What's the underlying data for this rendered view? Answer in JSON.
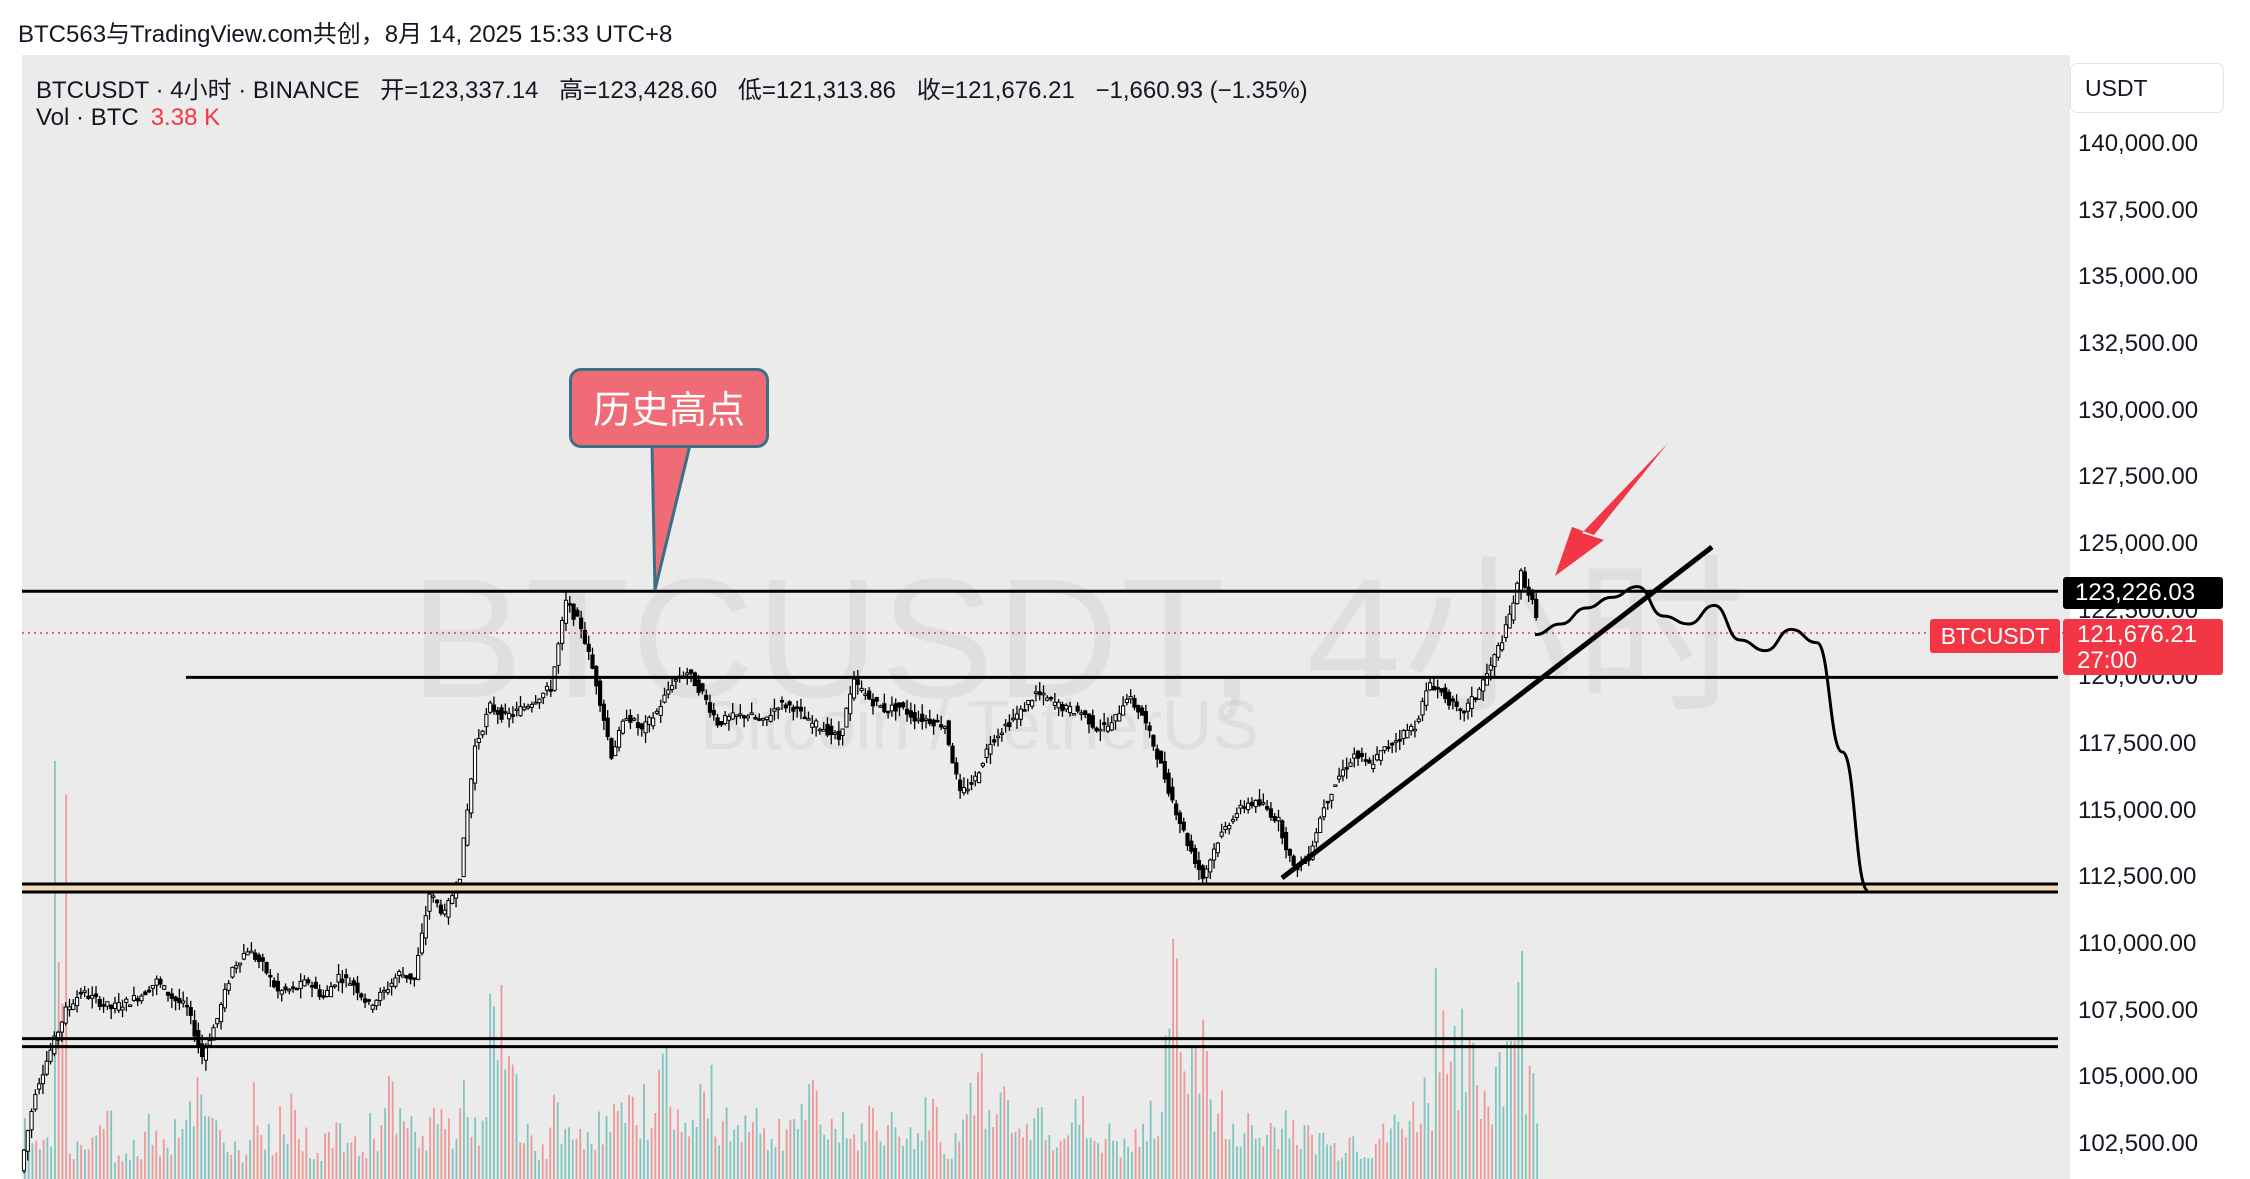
{
  "caption": "BTC563与TradingView.com共创，8月 14, 2025 15:33 UTC+8",
  "legend": {
    "symbol": "BTCUSDT · 4小时 · BINANCE",
    "open": "开=123,337.14",
    "high": "高=123,428.60",
    "low": "低=121,313.86",
    "close": "收=121,676.21",
    "change": "−1,660.93 (−1.35%)"
  },
  "volume_legend": {
    "label": "Vol · BTC",
    "value": "3.38 K"
  },
  "currency": "USDT",
  "watermark": {
    "main": "BTCUSDT, 4小时",
    "sub": "Bitcoin / TetherUS"
  },
  "callout": "历史高点",
  "price_axis": [
    "140,000.00",
    "137,500.00",
    "135,000.00",
    "132,500.00",
    "130,000.00",
    "127,500.00",
    "125,000.00",
    "122,500.00",
    "120,000.00",
    "117,500.00",
    "115,000.00",
    "112,500.00",
    "110,000.00",
    "107,500.00",
    "105,000.00",
    "102,500.00"
  ],
  "line_label": "123,226.03",
  "last_price": {
    "price": "121,676.21",
    "countdown": "27:00",
    "symbol": "BTCUSDT"
  },
  "colors": {
    "up": "#26a69a",
    "down": "#ef5350",
    "last": "#f23645",
    "callout": "#ef6b76"
  },
  "chart_data": {
    "type": "candlestick",
    "title": "BTCUSDT · 4小时 · BINANCE",
    "ylim": [
      101500,
      142000
    ],
    "price_ticks": [
      140000,
      137500,
      135000,
      132500,
      130000,
      127500,
      125000,
      122500,
      120000,
      117500,
      115000,
      112500,
      110000,
      107500,
      105000,
      102500
    ],
    "close_path": [
      101500,
      104500,
      106000,
      107500,
      108200,
      107900,
      107600,
      107800,
      108100,
      108600,
      108000,
      107600,
      105800,
      107200,
      109100,
      109800,
      109200,
      108200,
      108300,
      108600,
      108000,
      108800,
      108500,
      107700,
      108200,
      108900,
      108700,
      111900,
      111100,
      112600,
      117400,
      118900,
      118500,
      118800,
      119200,
      119600,
      122800,
      121900,
      119800,
      117100,
      118600,
      118000,
      118700,
      119800,
      120200,
      119400,
      118300,
      118500,
      118600,
      118300,
      119000,
      118900,
      118300,
      118100,
      117700,
      119800,
      119200,
      118800,
      118900,
      118500,
      118400,
      118200,
      115600,
      116200,
      117600,
      118200,
      118700,
      119400,
      119100,
      118800,
      118700,
      118100,
      118200,
      119300,
      118600,
      117100,
      115400,
      113800,
      112500,
      113900,
      114800,
      115300,
      115200,
      114600,
      112800,
      113300,
      115200,
      116300,
      117100,
      116700,
      117300,
      117800,
      118200,
      119800,
      119300,
      118600,
      119300,
      120400,
      121800,
      123900,
      122400
    ],
    "horizontal_levels": [
      123226.03,
      120000,
      112250,
      111950,
      106450,
      106150
    ],
    "last_price": 121676.21,
    "projected_path": [
      121600,
      122000,
      122600,
      123000,
      123400,
      122300,
      122000,
      122700,
      121400,
      121000,
      121800,
      121300,
      117200,
      112000
    ],
    "volume": [
      5,
      3,
      30,
      3,
      4,
      6,
      2,
      3,
      5,
      4,
      6,
      8,
      5,
      4,
      3,
      7,
      4,
      6,
      5,
      3,
      4,
      4,
      3,
      5,
      8,
      5,
      4,
      6,
      5,
      7,
      5,
      14,
      10,
      4,
      3,
      6,
      4,
      5,
      5,
      6,
      6,
      7,
      10,
      7,
      5,
      8,
      6,
      5,
      7,
      4,
      5,
      6,
      7,
      5,
      6,
      4,
      6,
      5,
      5,
      4,
      8,
      3,
      6,
      9,
      5,
      8,
      4,
      6,
      5,
      5,
      6,
      4,
      4,
      3,
      4,
      6,
      17,
      15,
      12,
      7,
      4,
      5,
      4,
      5,
      6,
      4,
      4,
      3,
      4,
      3,
      4,
      5,
      6,
      8,
      17,
      12,
      10,
      8,
      12,
      17,
      9
    ]
  }
}
